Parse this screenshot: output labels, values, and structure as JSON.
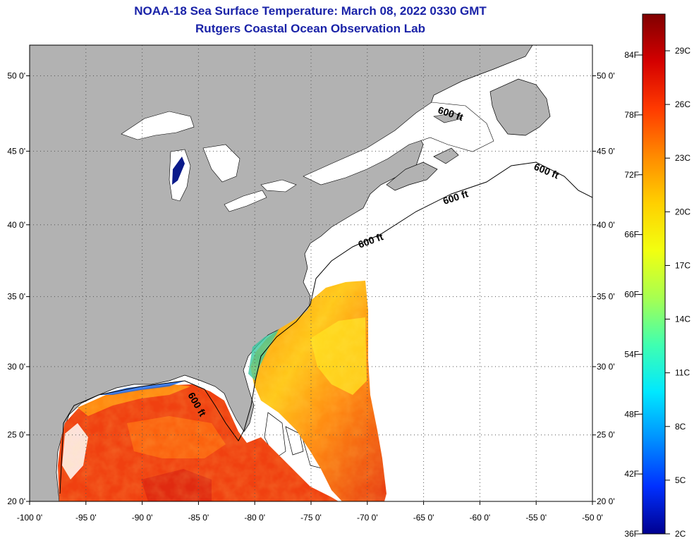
{
  "header": {
    "title": "NOAA-18 Sea Surface Temperature:  March 08, 2022 0330 GMT",
    "subtitle": "Rutgers Coastal Ocean Observation Lab"
  },
  "map": {
    "lon_range": [
      -100,
      -50
    ],
    "lat_range": [
      20,
      52
    ],
    "lon_ticks": [
      {
        "value": -100,
        "label": "-100 0'"
      },
      {
        "value": -95,
        "label": "-95 0'"
      },
      {
        "value": -90,
        "label": "-90 0'"
      },
      {
        "value": -85,
        "label": "-85 0'"
      },
      {
        "value": -80,
        "label": "-80 0'"
      },
      {
        "value": -75,
        "label": "-75 0'"
      },
      {
        "value": -70,
        "label": "-70 0'"
      },
      {
        "value": -65,
        "label": "-65 0'"
      },
      {
        "value": -60,
        "label": "-60 0'"
      },
      {
        "value": -55,
        "label": "-55 0'"
      },
      {
        "value": -50,
        "label": "-50 0'"
      }
    ],
    "lat_ticks": [
      {
        "value": 20,
        "label": "20 0'"
      },
      {
        "value": 25,
        "label": "25 0'"
      },
      {
        "value": 30,
        "label": "30 0'"
      },
      {
        "value": 35,
        "label": "35 0'"
      },
      {
        "value": 40,
        "label": "40 0'"
      },
      {
        "value": 45,
        "label": "45 0'"
      },
      {
        "value": 50,
        "label": "50 0'"
      }
    ],
    "contour_labels": [
      "600 ft",
      "600 ft",
      "600 ft",
      "600 ft",
      "600 ft"
    ],
    "colors": {
      "land": "#b2b2b2",
      "no_data": "#ffffff",
      "warm": "#f03a10",
      "mid": "#ffd21e",
      "cool": "#18b6e0",
      "lake_cold": "#0a1a8a"
    }
  },
  "colorbar": {
    "fahrenheit": [
      "84F",
      "78F",
      "72F",
      "66F",
      "60F",
      "54F",
      "48F",
      "42F",
      "36F"
    ],
    "celsius": [
      "29C",
      "26C",
      "23C",
      "20C",
      "17C",
      "14C",
      "11C",
      "8C",
      "5C",
      "2C"
    ],
    "gradient_stops": [
      "#800000",
      "#d40000",
      "#ff3a00",
      "#ff8a00",
      "#ffd000",
      "#f2ff10",
      "#a8ff50",
      "#40ffb0",
      "#00e8ff",
      "#0090ff",
      "#0030ff",
      "#000090"
    ]
  }
}
